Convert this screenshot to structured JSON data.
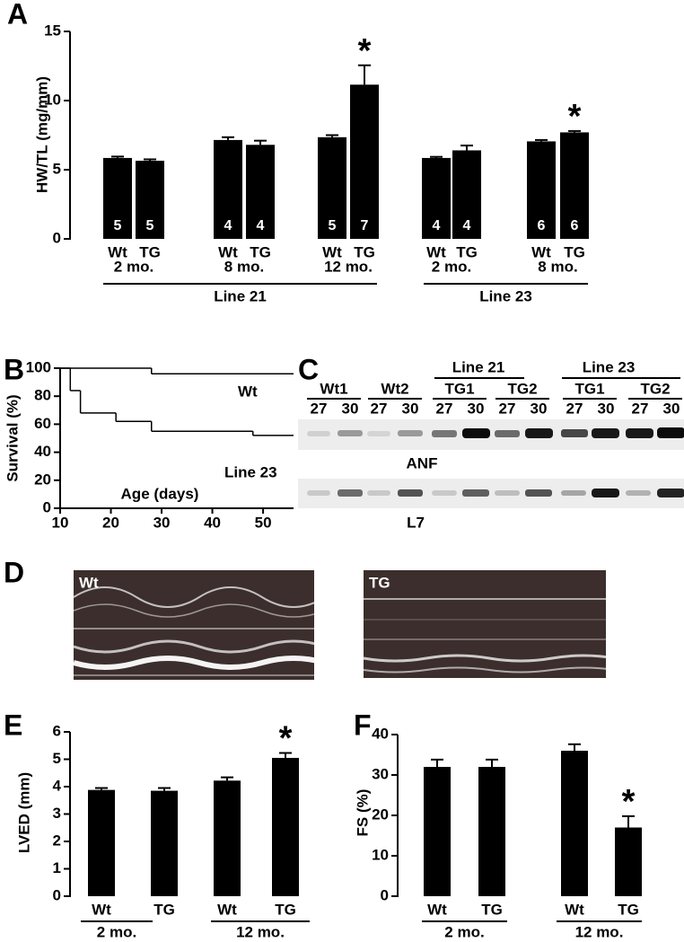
{
  "panel_labels": [
    "A",
    "B",
    "C",
    "D",
    "E",
    "F"
  ],
  "chart_data": [
    {
      "type": "bar",
      "ylabel": "HW/TL (mg/mm)",
      "categories": [
        "Wt",
        "TG",
        "Wt",
        "TG",
        "Wt",
        "TG",
        "Wt",
        "TG",
        "Wt",
        "TG"
      ],
      "values": [
        5.85,
        5.65,
        7.15,
        6.8,
        7.35,
        11.15,
        5.85,
        6.4,
        7.05,
        7.7
      ],
      "errors": [
        0.1,
        0.1,
        0.2,
        0.3,
        0.15,
        1.4,
        0.08,
        0.35,
        0.1,
        0.1
      ],
      "n": [
        5,
        5,
        4,
        4,
        5,
        7,
        4,
        4,
        6,
        6
      ],
      "significance": [
        null,
        null,
        null,
        null,
        null,
        "*",
        null,
        null,
        null,
        "*"
      ],
      "subgroups": [
        "2 mo.",
        "8 mo.",
        "12 mo.",
        "2 mo.",
        "8 mo."
      ],
      "groups": [
        "Line 21",
        "Line 23"
      ],
      "color": "#000000",
      "ylim": [
        0,
        15
      ],
      "yticks": [
        0,
        5,
        10,
        15
      ]
    },
    {
      "type": "step",
      "ylabel": "Survival (%)",
      "xlabel": "Age (days)",
      "series": [
        {
          "name": "Wt",
          "color": "#000000",
          "x": [
            10,
            28,
            56
          ],
          "values": [
            100,
            96,
            96
          ]
        },
        {
          "name": "Line 23",
          "color": "#000000",
          "x": [
            10,
            12,
            14,
            21,
            28,
            48,
            56
          ],
          "values": [
            100,
            84,
            68,
            62,
            55,
            52,
            52
          ]
        }
      ],
      "xlim": [
        10,
        56
      ],
      "xticks": [
        10,
        20,
        30,
        40,
        50
      ],
      "ylim": [
        0,
        100
      ],
      "yticks": [
        0,
        20,
        40,
        60,
        80,
        100
      ]
    },
    {
      "type": "bar",
      "ylabel": "LVED (mm)",
      "categories": [
        "Wt",
        "TG",
        "Wt",
        "TG"
      ],
      "values": [
        3.88,
        3.85,
        4.22,
        5.05
      ],
      "errors": [
        0.07,
        0.1,
        0.12,
        0.18
      ],
      "significance": [
        null,
        null,
        null,
        "*"
      ],
      "groups": [
        "2 mo.",
        "12 mo."
      ],
      "color": "#000000",
      "ylim": [
        0,
        6
      ],
      "yticks": [
        0,
        1,
        2,
        3,
        4,
        5,
        6
      ]
    },
    {
      "type": "bar",
      "ylabel": "FS (%)",
      "categories": [
        "Wt",
        "TG",
        "Wt",
        "TG"
      ],
      "values": [
        32,
        32,
        36,
        17
      ],
      "errors": [
        1.8,
        1.8,
        1.6,
        2.8
      ],
      "significance": [
        null,
        null,
        null,
        "*"
      ],
      "groups": [
        "2 mo.",
        "12 mo."
      ],
      "color": "#000000",
      "ylim": [
        0,
        40
      ],
      "yticks": [
        0,
        10,
        20,
        30,
        40
      ]
    }
  ],
  "gel": {
    "lines": [
      "Line 21",
      "Line 23"
    ],
    "samples": [
      "Wt1",
      "Wt2",
      "TG1",
      "TG2",
      "TG1",
      "TG2"
    ],
    "days": [
      27,
      30
    ],
    "bands": [
      "ANF",
      "L7"
    ]
  },
  "echo": {
    "labels": [
      "Wt",
      "TG"
    ]
  }
}
